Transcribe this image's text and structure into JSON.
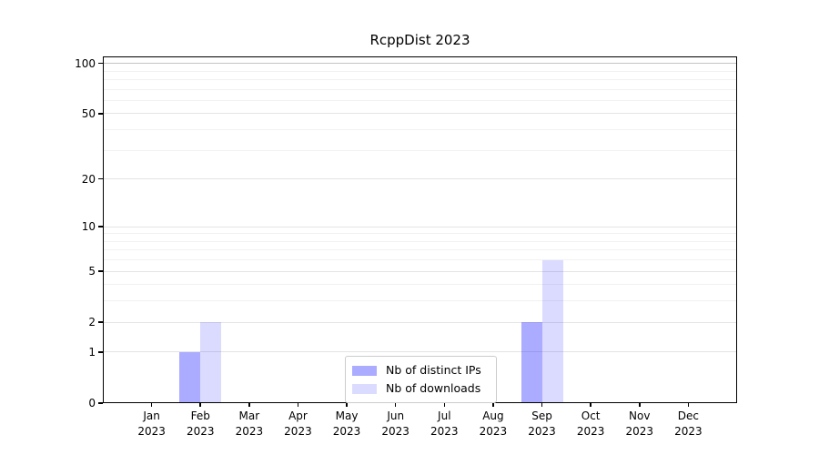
{
  "title": "RcppDist 2023",
  "chart_data": {
    "type": "bar",
    "title": "RcppDist 2023",
    "y_scale": "log1p",
    "categories": [
      "Jan 2023",
      "Feb 2023",
      "Mar 2023",
      "Apr 2023",
      "May 2023",
      "Jun 2023",
      "Jul 2023",
      "Aug 2023",
      "Sep 2023",
      "Oct 2023",
      "Nov 2023",
      "Dec 2023"
    ],
    "x_tick_months": [
      "Jan",
      "Feb",
      "Mar",
      "Apr",
      "May",
      "Jun",
      "Jul",
      "Aug",
      "Sep",
      "Oct",
      "Nov",
      "Dec"
    ],
    "x_tick_year": "2023",
    "series": [
      {
        "name": "Nb of distinct IPs",
        "color": "rgba(0,0,255,0.33)",
        "values": [
          0,
          1,
          0,
          0,
          0,
          0,
          0,
          0,
          2,
          0,
          0,
          0
        ]
      },
      {
        "name": "Nb of downloads",
        "color": "rgba(0,0,255,0.14)",
        "values": [
          0,
          2,
          0,
          0,
          0,
          0,
          0,
          0,
          6,
          0,
          0,
          0
        ]
      }
    ],
    "y_major_ticks": [
      0,
      1,
      2,
      5,
      10,
      20,
      50,
      100
    ],
    "y_minor_gridlines": [
      3,
      4,
      6,
      7,
      8,
      9,
      30,
      40,
      60,
      70,
      80,
      90
    ],
    "ylim": [
      0,
      110
    ],
    "xlabel": "",
    "ylabel": "",
    "grid": true,
    "legend_position": "lower center"
  },
  "legend": {
    "items": [
      {
        "label": "Nb of distinct IPs",
        "color": "rgba(0,0,255,0.33)"
      },
      {
        "label": "Nb of downloads",
        "color": "rgba(0,0,255,0.14)"
      }
    ]
  },
  "colors": {
    "background": "#ffffff",
    "spine": "#000000",
    "grid_major": "#e4e4e4",
    "grid_minor": "#f1f1f1",
    "grid_top": "#c5c5c5",
    "bar_dark": "rgba(0,0,255,0.33)",
    "bar_light": "rgba(0,0,255,0.14)",
    "legend_border": "#cccccc",
    "text": "#000000"
  }
}
